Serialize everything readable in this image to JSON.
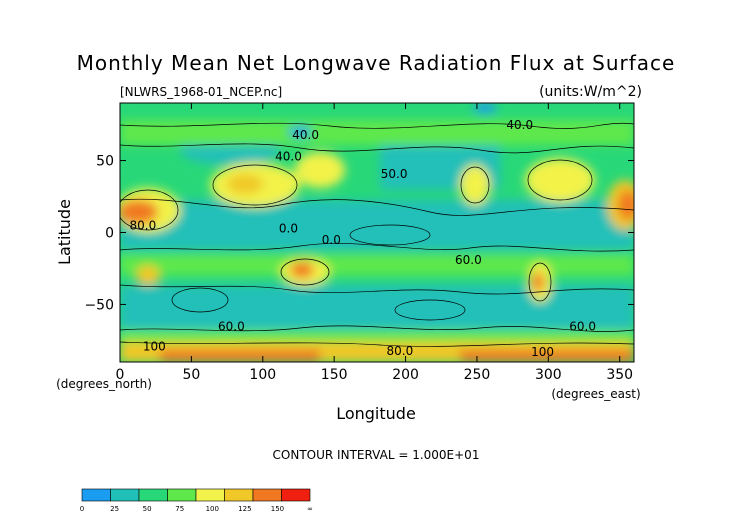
{
  "chart_data": {
    "type": "heatmap",
    "title": "Monthly Mean Net Longwave Radiation Flux at Surface",
    "subtitle_left": "[NLWRS_1968-01_NCEP.nc]",
    "subtitle_right": "(units:W/m^2)",
    "xlabel": "Longitude",
    "ylabel": "Latitude",
    "x_units_label": "(degrees_east)",
    "y_units_label": "(degrees_north)",
    "xlim": [
      0,
      360
    ],
    "ylim": [
      -90,
      90
    ],
    "x_ticks": [
      0,
      50,
      100,
      150,
      200,
      250,
      300,
      350
    ],
    "y_ticks": [
      -50,
      0,
      50
    ],
    "contour_interval_text": "CONTOUR INTERVAL = 1.000E+01",
    "contour_labels": [
      {
        "text": "40.0",
        "lon": 130,
        "lat": 65
      },
      {
        "text": "40.0",
        "lon": 280,
        "lat": 72
      },
      {
        "text": "40.0",
        "lon": 118,
        "lat": 50
      },
      {
        "text": "50.0",
        "lon": 192,
        "lat": 38
      },
      {
        "text": "80.0",
        "lon": 16,
        "lat": 2
      },
      {
        "text": "0.0",
        "lon": 118,
        "lat": 0
      },
      {
        "text": "0.0",
        "lon": 148,
        "lat": -8
      },
      {
        "text": "60.0",
        "lon": 244,
        "lat": -22
      },
      {
        "text": "60.0",
        "lon": 78,
        "lat": -68
      },
      {
        "text": "60.0",
        "lon": 324,
        "lat": -68
      },
      {
        "text": "100",
        "lon": 24,
        "lat": -82
      },
      {
        "text": "80.0",
        "lon": 196,
        "lat": -85
      },
      {
        "text": "100",
        "lon": 296,
        "lat": -86
      }
    ],
    "colorbar": {
      "levels": [
        "0",
        "25",
        "50",
        "75",
        "100",
        "125",
        "150",
        "∞"
      ],
      "colors": [
        "#1a9cf0",
        "#20c0b8",
        "#28d878",
        "#5ee84c",
        "#f2f24a",
        "#f0c828",
        "#f07820",
        "#f02010"
      ]
    }
  }
}
